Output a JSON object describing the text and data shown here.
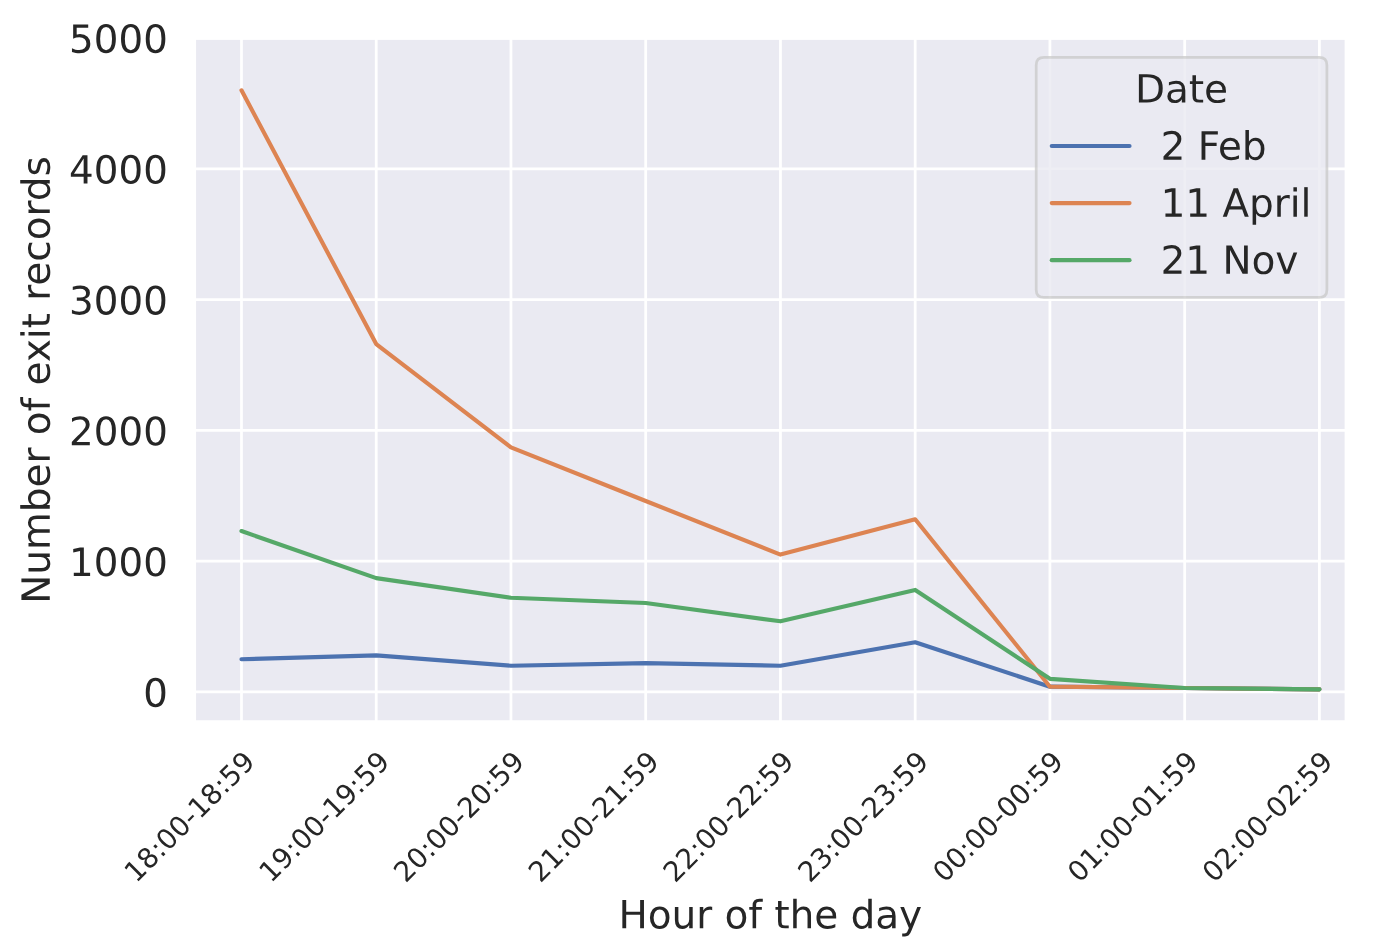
{
  "chart_data": {
    "type": "line",
    "xlabel": "Hour of the day",
    "ylabel": "Number of exit records",
    "legend_title": "Date",
    "categories": [
      "18:00-18:59",
      "19:00-19:59",
      "20:00-20:59",
      "21:00-21:59",
      "22:00-22:59",
      "23:00-23:59",
      "00:00-00:59",
      "01:00-01:59",
      "02:00-02:59"
    ],
    "series": [
      {
        "name": "2 Feb",
        "color": "#4c72b0",
        "values": [
          250,
          280,
          200,
          220,
          200,
          380,
          40,
          30,
          20
        ]
      },
      {
        "name": "11 April",
        "color": "#dd8452",
        "values": [
          4600,
          2660,
          1870,
          1460,
          1050,
          1320,
          40,
          30,
          20
        ]
      },
      {
        "name": "21 Nov",
        "color": "#55a868",
        "values": [
          1230,
          870,
          720,
          680,
          540,
          780,
          100,
          30,
          20
        ]
      }
    ],
    "ylim": [
      -230,
      5000
    ],
    "yticks": [
      0,
      1000,
      2000,
      3000,
      4000,
      5000
    ],
    "grid": true,
    "legend": "top right"
  }
}
